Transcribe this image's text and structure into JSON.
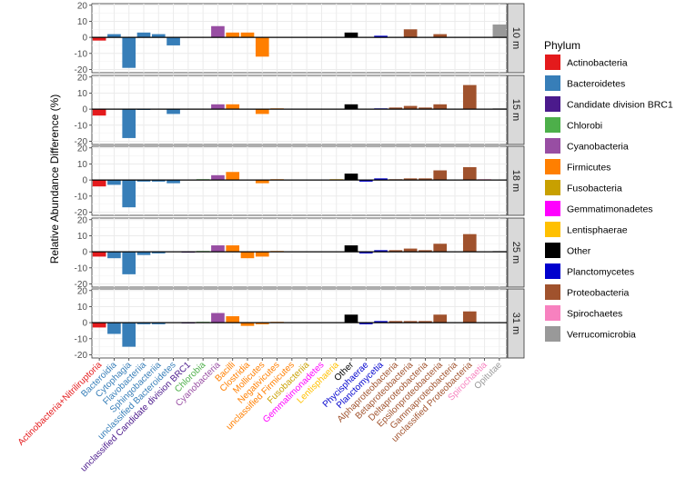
{
  "chart_data": {
    "type": "bar",
    "ylabel": "Relative Abundance Difference (%)",
    "ylim": [
      -22,
      21
    ],
    "yticks": [
      20,
      10,
      0,
      -10,
      -20
    ],
    "categories": [
      "Actinobacteria+Nitriliruptoria",
      "Bacteroidia",
      "Cytophagia",
      "Flavobacteriia",
      "Sphingobacteriia",
      "unclassified Bacteroidetes",
      "unclassified Candidate division BRC1",
      "Chlorobia",
      "Cyanobacteria",
      "Bacilli",
      "Clostridia",
      "Mollicutes",
      "Negativicutes",
      "unclassified Firmicutes",
      "Fusobacteriia",
      "Gemmatimonadetes",
      "Lentisphaeria",
      "Other",
      "Phycisphaerae",
      "Planctomycetia",
      "Alphaproteobacteria",
      "Betaproteobacteria",
      "Deltaproteobacteria",
      "Epsilonproteobacteria",
      "Gammaproteobacteria",
      "unclassified Proteobacteria",
      "Spirochaetia",
      "Opitutae"
    ],
    "category_phylum": [
      "Actinobacteria",
      "Bacteroidetes",
      "Bacteroidetes",
      "Bacteroidetes",
      "Bacteroidetes",
      "Bacteroidetes",
      "Candidate division BRC1",
      "Chlorobi",
      "Cyanobacteria",
      "Firmicutes",
      "Firmicutes",
      "Firmicutes",
      "Firmicutes",
      "Firmicutes",
      "Fusobacteria",
      "Gemmatimonadetes",
      "Lentisphaerae",
      "Other",
      "Planctomycetes",
      "Planctomycetes",
      "Proteobacteria",
      "Proteobacteria",
      "Proteobacteria",
      "Proteobacteria",
      "Proteobacteria",
      "Proteobacteria",
      "Spirochaetes",
      "Verrucomicrobia"
    ],
    "legend": {
      "title": "Phylum",
      "position": "right",
      "entries": [
        {
          "name": "Actinobacteria",
          "color": "#E41A1C"
        },
        {
          "name": "Bacteroidetes",
          "color": "#377EB8"
        },
        {
          "name": "Candidate division BRC1",
          "color": "#4B1A8C"
        },
        {
          "name": "Chlorobi",
          "color": "#4DAF4A"
        },
        {
          "name": "Cyanobacteria",
          "color": "#984EA3"
        },
        {
          "name": "Firmicutes",
          "color": "#FF7F00"
        },
        {
          "name": "Fusobacteria",
          "color": "#C8A000"
        },
        {
          "name": "Gemmatimonadetes",
          "color": "#FF00FF"
        },
        {
          "name": "Lentisphaerae",
          "color": "#FFC000"
        },
        {
          "name": "Other",
          "color": "#000000"
        },
        {
          "name": "Planctomycetes",
          "color": "#0000CD"
        },
        {
          "name": "Proteobacteria",
          "color": "#A0522D"
        },
        {
          "name": "Spirochaetes",
          "color": "#F781BF"
        },
        {
          "name": "Verrucomicrobia",
          "color": "#999999"
        }
      ]
    },
    "series": [
      {
        "name": "10 m",
        "values": [
          -2,
          2,
          -19,
          3,
          2,
          -5,
          0,
          0,
          7,
          3,
          3,
          -12,
          0,
          0,
          0,
          0,
          0,
          3,
          0,
          1,
          0,
          5,
          0,
          2,
          0,
          0,
          0,
          8
        ]
      },
      {
        "name": "15 m",
        "values": [
          -4,
          0,
          -18,
          -0.5,
          0,
          -3,
          0,
          0,
          3,
          3,
          0,
          -3,
          0.5,
          0,
          0,
          0,
          0,
          3,
          0,
          0.5,
          1,
          2,
          1,
          3,
          0,
          15,
          0,
          0.5
        ]
      },
      {
        "name": "18 m",
        "values": [
          -4,
          -3,
          -17,
          -1,
          -1,
          -2,
          0,
          0.5,
          3,
          5,
          0,
          -2,
          0.5,
          0,
          0,
          0,
          0.5,
          4,
          -1,
          1,
          0.5,
          1,
          1,
          6,
          0,
          8,
          0.5,
          0
        ]
      },
      {
        "name": "25 m",
        "values": [
          -3,
          -4,
          -14,
          -2,
          -1,
          0,
          -0.5,
          0.5,
          4,
          4,
          -4,
          -3,
          0.5,
          0,
          0,
          0,
          0,
          4,
          -1,
          1,
          1,
          2,
          1,
          5,
          0,
          11,
          0,
          0.5
        ]
      },
      {
        "name": "31 m",
        "values": [
          -3,
          -7,
          -15,
          -1,
          -1,
          0,
          -0.5,
          0.5,
          6,
          4,
          -2,
          -1,
          0.5,
          0,
          0,
          0,
          0,
          5,
          -1,
          1,
          1,
          1,
          1,
          5,
          0,
          7,
          0,
          0
        ]
      }
    ]
  }
}
